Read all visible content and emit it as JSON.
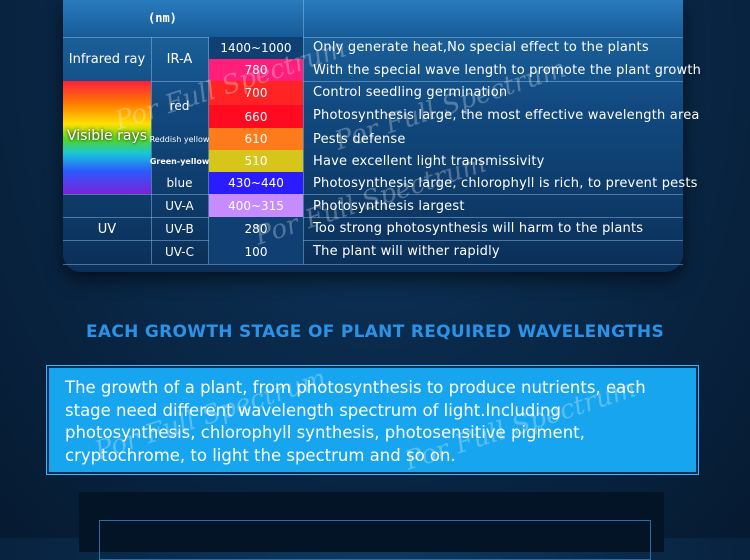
{
  "table": {
    "unit_header": "(nm)",
    "rows": [
      {
        "band": "Infrared ray",
        "sub": "IR-A",
        "wave": "1400~1000",
        "desc": "Only generate heat,No special effect to the plants"
      },
      {
        "band": "",
        "sub": "",
        "wave": "780",
        "desc": "With the special wave length to promote the plant growth"
      },
      {
        "band": "",
        "sub": "red",
        "wave": "700",
        "desc": "Control seedling germination"
      },
      {
        "band": "Visible rays",
        "sub": "",
        "wave": "660",
        "desc": "Photosynthesis large, the most effective wavelength area"
      },
      {
        "band": "",
        "sub": "Reddish yellow",
        "wave": "610",
        "desc": "Pests defense"
      },
      {
        "band": "",
        "sub": "Green-yellow",
        "wave": "510",
        "desc": "Have excellent light transmissivity"
      },
      {
        "band": "",
        "sub": "blue",
        "wave": "430~440",
        "desc": "Photosynthesis large, chlorophyll is rich, to prevent pests"
      },
      {
        "band": "UV",
        "sub": "UV-A",
        "wave": "400~315",
        "desc": "Photosynthesis largest"
      },
      {
        "band": "",
        "sub": "UV-B",
        "wave": "280",
        "desc": "Too strong photosynthesis will harm to the plants"
      },
      {
        "band": "",
        "sub": "UV-C",
        "wave": "100",
        "desc": "The plant will wither rapidly"
      }
    ],
    "wave_colors": [
      "#0f3f73",
      "#ff1e7a",
      "#ff2323",
      "#ff0a20",
      "#ff7a1a",
      "#d6c51a",
      "#2a1cff",
      "#c58bff",
      "#0f3f73",
      "#0f3f73"
    ]
  },
  "heading": "EACH GROWTH STAGE OF PLANT REQUIRED WAVELENGTHS",
  "paragraph": "The growth of a plant, from photosynthesis to produce nutrients, each stage need different wavelength spectrum of light.Including photosynthesis, chlorophyll synthesis, photosensitive pigment, cryptochrome, to light the spectrum and so on.",
  "watermark": "Por Full Spectrum"
}
